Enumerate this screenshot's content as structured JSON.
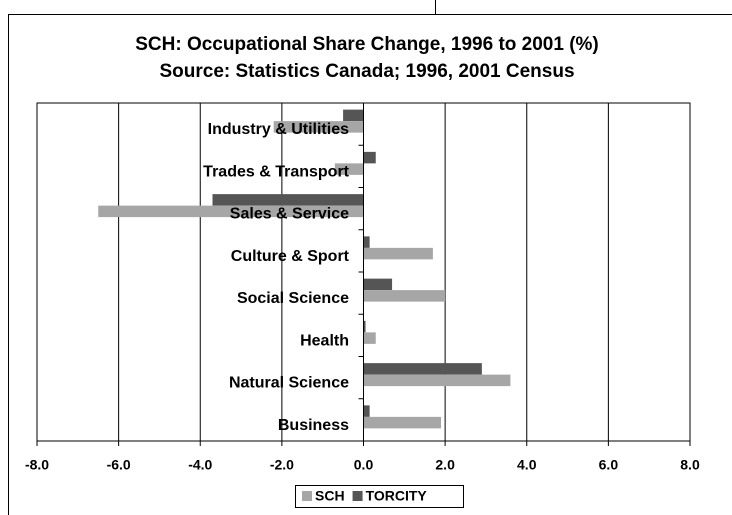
{
  "chart_data": {
    "type": "hbar",
    "title": "SCH: Occupational Share Change, 1996 to 2001 (%)",
    "subtitle": "Source: Statistics Canada; 1996, 2001 Census",
    "categories": [
      "Industry & Utilities",
      "Trades & Transport",
      "Sales & Service",
      "Culture & Sport",
      "Social Science",
      "Health",
      "Natural Science",
      "Business"
    ],
    "series": [
      {
        "name": "SCH",
        "color": "#a6a6a6",
        "values": [
          -2.2,
          -0.7,
          -6.5,
          1.7,
          2.0,
          0.3,
          3.6,
          1.9
        ]
      },
      {
        "name": "TORCITY",
        "color": "#555555",
        "values": [
          -0.5,
          0.3,
          -3.7,
          0.15,
          0.7,
          0.05,
          2.9,
          0.15
        ]
      }
    ],
    "xlim": [
      -8,
      8
    ],
    "xticks": [
      {
        "value": -8,
        "label": "-8.0"
      },
      {
        "value": -6,
        "label": "-6.0"
      },
      {
        "value": -4,
        "label": "-4.0"
      },
      {
        "value": -2,
        "label": "-2.0"
      },
      {
        "value": 0,
        "label": "0.0"
      },
      {
        "value": 2,
        "label": "2.0"
      },
      {
        "value": 4,
        "label": "4.0"
      },
      {
        "value": 6,
        "label": "6.0"
      },
      {
        "value": 8,
        "label": "8.0"
      }
    ],
    "grid": true
  }
}
